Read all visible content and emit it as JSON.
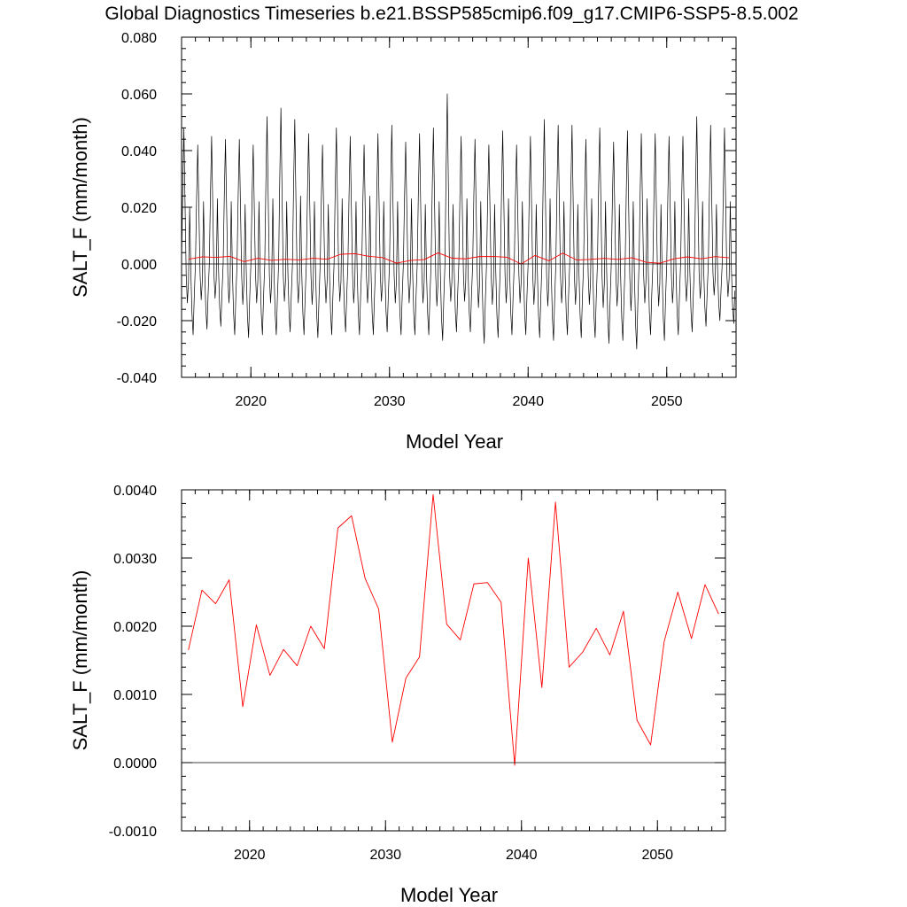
{
  "title": "Global Diagnostics Timeseries b.e21.BSSP585cmip6.f09_g17.CMIP6-SSP5-8.5.002",
  "colors": {
    "monthly": "#000000",
    "annual": "#ff0000",
    "zero_line": "#000000"
  },
  "chart_data": [
    {
      "type": "line",
      "title": "Global Diagnostics Timeseries b.e21.BSSP585cmip6.f09_g17.CMIP6-SSP5-8.5.002",
      "xlabel": "Model Year",
      "ylabel": "SALT_F (mm/month)",
      "xlim": [
        2015,
        2055
      ],
      "ylim": [
        -0.04,
        0.08
      ],
      "x_ticks": [
        2020,
        2030,
        2040,
        2050
      ],
      "x_tick_labels": [
        "2020",
        "2030",
        "2040",
        "2050"
      ],
      "y_ticks": [
        -0.04,
        -0.02,
        0.0,
        0.02,
        0.04,
        0.06,
        0.08
      ],
      "y_tick_labels": [
        "-0.040",
        "-0.020",
        "0.000",
        "0.020",
        "0.040",
        "0.060",
        "0.080"
      ],
      "reference_line": 0.0,
      "grid": false,
      "series": [
        {
          "style": "monthly",
          "x_start": 2015.0,
          "x_step": 0.08333333,
          "peak_max": [
            0.048,
            0.042,
            0.045,
            0.044,
            0.044,
            0.042,
            0.052,
            0.055,
            0.051,
            0.046,
            0.042,
            0.048,
            0.045,
            0.042,
            0.046,
            0.049,
            0.043,
            0.046,
            0.048,
            0.06,
            0.045,
            0.044,
            0.042,
            0.047,
            0.042,
            0.045,
            0.051,
            0.049,
            0.049,
            0.044,
            0.048,
            0.043,
            0.047,
            0.046,
            0.046,
            0.045,
            0.045,
            0.052,
            0.049,
            0.048
          ],
          "annual_min": [
            -0.025,
            -0.023,
            -0.022,
            -0.025,
            -0.026,
            -0.025,
            -0.025,
            -0.024,
            -0.025,
            -0.026,
            -0.025,
            -0.024,
            -0.025,
            -0.025,
            -0.024,
            -0.025,
            -0.025,
            -0.025,
            -0.027,
            -0.024,
            -0.024,
            -0.028,
            -0.026,
            -0.025,
            -0.025,
            -0.026,
            -0.027,
            -0.025,
            -0.026,
            -0.026,
            -0.028,
            -0.027,
            -0.03,
            -0.025,
            -0.027,
            -0.025,
            -0.024,
            -0.022,
            -0.02,
            -0.021
          ],
          "secondary_peak": [
            0.02,
            0.022,
            0.023,
            0.022,
            0.021,
            0.022,
            0.023,
            0.022,
            0.024,
            0.022,
            0.021,
            0.023,
            0.022,
            0.024,
            0.022,
            0.022,
            0.023,
            0.021,
            0.022,
            0.021,
            0.023,
            0.022,
            0.021,
            0.023,
            0.022,
            0.021,
            0.023,
            0.022,
            0.021,
            0.023,
            0.022,
            0.021,
            0.022,
            0.023,
            0.021,
            0.022,
            0.023,
            0.022,
            0.021,
            0.022
          ]
        },
        {
          "style": "annual",
          "x": [
            2015.5,
            2016.5,
            2017.5,
            2018.5,
            2019.5,
            2020.5,
            2021.5,
            2022.5,
            2023.5,
            2024.5,
            2025.5,
            2026.5,
            2027.5,
            2028.5,
            2029.5,
            2030.5,
            2031.5,
            2032.5,
            2033.5,
            2034.5,
            2035.5,
            2036.5,
            2037.5,
            2038.5,
            2039.5,
            2040.5,
            2041.5,
            2042.5,
            2043.5,
            2044.5,
            2045.5,
            2046.5,
            2047.5,
            2048.5,
            2049.5,
            2050.5,
            2051.5,
            2052.5,
            2053.5,
            2054.5
          ],
          "values": [
            0.00165,
            0.00253,
            0.00233,
            0.00268,
            0.00082,
            0.00202,
            0.00128,
            0.00166,
            0.00142,
            0.002,
            0.00167,
            0.00344,
            0.00362,
            0.0027,
            0.00225,
            0.0003,
            0.00124,
            0.00155,
            0.00393,
            0.00203,
            0.0018,
            0.00262,
            0.00264,
            0.00235,
            -4e-05,
            0.003,
            0.0011,
            0.00382,
            0.0014,
            0.00162,
            0.00197,
            0.00158,
            0.00222,
            0.00062,
            0.00026,
            0.00178,
            0.0025,
            0.00182,
            0.00261,
            0.00218
          ]
        }
      ]
    },
    {
      "type": "line",
      "xlabel": "Model Year",
      "ylabel": "SALT_F (mm/month)",
      "xlim": [
        2015,
        2055
      ],
      "ylim": [
        -0.001,
        0.004
      ],
      "x_ticks": [
        2020,
        2030,
        2040,
        2050
      ],
      "x_tick_labels": [
        "2020",
        "2030",
        "2040",
        "2050"
      ],
      "y_ticks": [
        -0.001,
        0.0,
        0.001,
        0.002,
        0.003,
        0.004
      ],
      "y_tick_labels": [
        "-0.0010",
        "0.0000",
        "0.0010",
        "0.0020",
        "0.0030",
        "0.0040"
      ],
      "reference_line": 0.0,
      "grid": false,
      "series": [
        {
          "style": "annual",
          "x": [
            2015.5,
            2016.5,
            2017.5,
            2018.5,
            2019.5,
            2020.5,
            2021.5,
            2022.5,
            2023.5,
            2024.5,
            2025.5,
            2026.5,
            2027.5,
            2028.5,
            2029.5,
            2030.5,
            2031.5,
            2032.5,
            2033.5,
            2034.5,
            2035.5,
            2036.5,
            2037.5,
            2038.5,
            2039.5,
            2040.5,
            2041.5,
            2042.5,
            2043.5,
            2044.5,
            2045.5,
            2046.5,
            2047.5,
            2048.5,
            2049.5,
            2050.5,
            2051.5,
            2052.5,
            2053.5,
            2054.5
          ],
          "values": [
            0.00165,
            0.00253,
            0.00233,
            0.00268,
            0.00082,
            0.00202,
            0.00128,
            0.00166,
            0.00142,
            0.002,
            0.00167,
            0.00344,
            0.00362,
            0.0027,
            0.00225,
            0.0003,
            0.00124,
            0.00155,
            0.00393,
            0.00203,
            0.0018,
            0.00262,
            0.00264,
            0.00235,
            -4e-05,
            0.003,
            0.0011,
            0.00382,
            0.0014,
            0.00162,
            0.00197,
            0.00158,
            0.00222,
            0.00062,
            0.00026,
            0.00178,
            0.0025,
            0.00182,
            0.00261,
            0.00218
          ]
        }
      ]
    }
  ]
}
